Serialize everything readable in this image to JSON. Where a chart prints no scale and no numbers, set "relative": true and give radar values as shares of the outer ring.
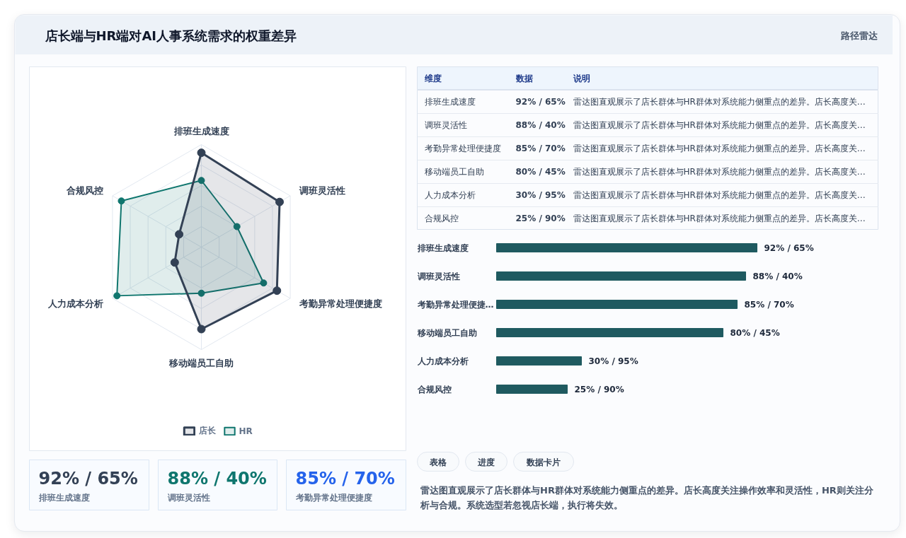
{
  "chart_data": [
    {
      "type": "other",
      "title": "店长端与HR端对AI人事系统需求的权重差异",
      "subtitle": "路径雷达"
    },
    {
      "type": "radar",
      "categories": [
        "排班生成速度",
        "调班灵活性",
        "考勤异常处理便捷度",
        "移动端员工自助",
        "人力成本分析",
        "合规风控"
      ],
      "relative": true,
      "series": [
        {
          "name": "店长",
          "color": "#334155",
          "values": [
            0.92,
            0.88,
            0.85,
            0.8,
            0.3,
            0.25
          ]
        },
        {
          "name": "HR",
          "color": "#0f766e",
          "values": [
            0.65,
            0.4,
            0.7,
            0.45,
            0.95,
            0.9
          ]
        }
      ],
      "marker": "circle",
      "grid": true,
      "legend": "bottom",
      "annotations": [
        "雷达图直观展示了店长群体与HR群体对系统能力侧重点的差异。店长高度关注操作效率和灵活性，HR则关注分析与合规。系统选型若忽视店长端，执行将失效。"
      ]
    },
    {
      "type": "other",
      "annotations": [
        "维度",
        "数据",
        "说明",
        "排班生成速度",
        "92% / 65%",
        "雷达图直观展示了店长群体与HR群体对系统能力侧重点的差异。店长高度关…",
        "调班灵活性",
        "88% / 40%",
        "雷达图直观展示了店长群体与HR群体对系统能力侧重点的差异。店长高度关…",
        "考勤异常处理便捷度",
        "85% / 70%",
        "雷达图直观展示了店长群体与HR群体对系统能力侧重点的差异。店长高度关…",
        "移动端员工自助",
        "80% / 45%",
        "雷达图直观展示了店长群体与HR群体对系统能力侧重点的差异。店长高度关…",
        "人力成本分析",
        "30% / 95%",
        "雷达图直观展示了店长群体与HR群体对系统能力侧重点的差异。店长高度关…",
        "合规风控",
        "25% / 90%",
        "雷达图直观展示了店长群体与HR群体对系统能力侧重点的差异。店长高度关…"
      ]
    },
    {
      "type": "bar",
      "orientation": "horizontal",
      "categories": [
        "排班生成速度",
        "调班灵活性",
        "考勤异常处理便捷…",
        "移动端员工自助",
        "人力成本分析",
        "合规风控"
      ],
      "values": [
        92,
        88,
        85,
        80,
        30,
        25
      ],
      "value_labels": [
        "92% / 65%",
        "88% / 40%",
        "85% / 70%",
        "80% / 45%",
        "30% / 95%",
        "25% / 90%"
      ],
      "color": "#1f5a60"
    },
    {
      "type": "other",
      "annotations": [
        "92% / 65%",
        "排班生成速度",
        "88% / 40%",
        "调班灵活性",
        "85% / 70%",
        "考勤异常处理便捷度"
      ],
      "colors": [
        "#334155",
        "#0f766e",
        "#2563eb"
      ]
    },
    {
      "type": "other",
      "annotations": [
        "表格",
        "进度",
        "数据卡片"
      ]
    }
  ]
}
